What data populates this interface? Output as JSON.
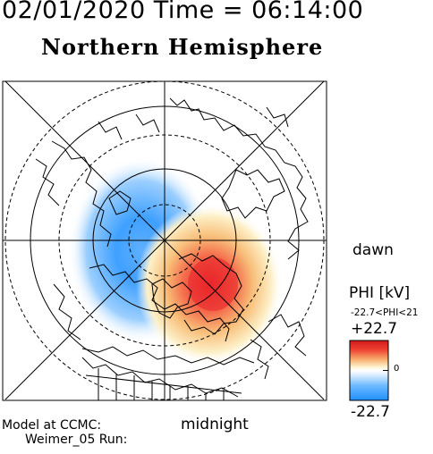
{
  "header": {
    "datetime": "02/01/2020 Time = 06:14:00",
    "title": "Northern Hemisphere"
  },
  "labels": {
    "dawn": "dawn",
    "midnight": "midnight",
    "model_line1": "Model at CCMC:",
    "model_line2": "Weimer_05 Run:"
  },
  "colorbar": {
    "title": "PHI [kV]",
    "range_text": "-22.7<PHI<21",
    "max_label": "+22.7",
    "zero_label": "0",
    "min_label": "-22.7",
    "colors": {
      "positive": "#e8202a",
      "neutral": "#ffffff",
      "negative": "#1f8fff"
    }
  },
  "map": {
    "projection": "polar-north",
    "circles": "dashed and solid latitude circles",
    "potential_cells": [
      {
        "sign": "negative",
        "sector": "dusk-to-noon"
      },
      {
        "sign": "positive",
        "sector": "dawn-midnight"
      }
    ]
  }
}
